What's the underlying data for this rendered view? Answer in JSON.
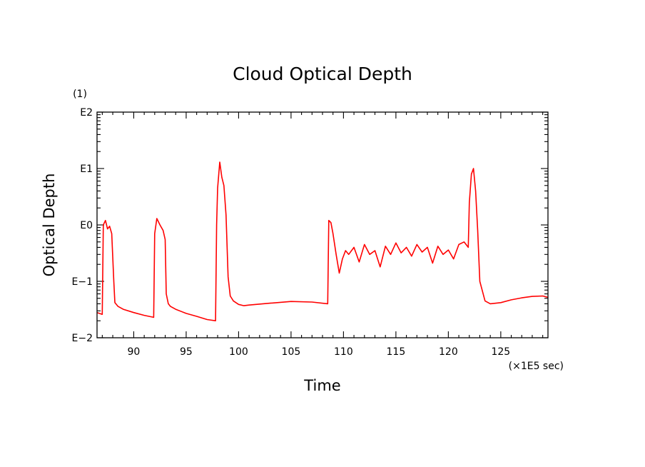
{
  "chart_data": {
    "type": "line",
    "title": "Cloud Optical Depth",
    "xlabel": "Time",
    "ylabel": "Optical Depth",
    "x_units_label": "(×1E5 sec)",
    "y_scale_label": "(1)",
    "y_scale": "log",
    "grid": false,
    "xlim": [
      86.5,
      129.5
    ],
    "ylim": [
      0.01,
      100
    ],
    "x_tick_labels": [
      "90",
      "95",
      "100",
      "105",
      "110",
      "115",
      "120",
      "125"
    ],
    "y_tick_labels": [
      "E−2",
      "E−1",
      "E0",
      "E1",
      "E2"
    ],
    "series": [
      {
        "color": "#ff0000",
        "x": [
          86.5,
          87.0,
          87.1,
          87.3,
          87.5,
          87.7,
          87.9,
          88.1,
          88.2,
          88.5,
          89.0,
          90.0,
          91.0,
          91.9,
          92.0,
          92.2,
          92.5,
          92.8,
          93.0,
          93.1,
          93.3,
          93.5,
          94.0,
          95.0,
          96.0,
          97.0,
          97.8,
          97.9,
          98.0,
          98.2,
          98.4,
          98.6,
          98.8,
          99.0,
          99.2,
          99.5,
          100.0,
          100.5,
          101.0,
          103.0,
          105.0,
          107.0,
          108.5,
          108.6,
          108.8,
          109.0,
          109.3,
          109.6,
          109.9,
          110.2,
          110.5,
          111.0,
          111.5,
          112.0,
          112.5,
          113.0,
          113.5,
          114.0,
          114.5,
          115.0,
          115.5,
          116.0,
          116.5,
          117.0,
          117.5,
          118.0,
          118.5,
          119.0,
          119.5,
          120.0,
          120.5,
          121.0,
          121.5,
          121.9,
          122.0,
          122.2,
          122.4,
          122.6,
          122.8,
          123.0,
          123.5,
          124.0,
          125.0,
          126.0,
          127.0,
          128.0,
          129.0,
          129.5
        ],
        "y": [
          0.028,
          0.026,
          1.0,
          1.2,
          0.85,
          0.95,
          0.7,
          0.1,
          0.042,
          0.036,
          0.032,
          0.028,
          0.025,
          0.023,
          0.7,
          1.3,
          1.0,
          0.8,
          0.55,
          0.06,
          0.04,
          0.036,
          0.032,
          0.027,
          0.024,
          0.021,
          0.02,
          1.0,
          4.5,
          13.0,
          7.0,
          5.0,
          1.5,
          0.12,
          0.055,
          0.045,
          0.039,
          0.037,
          0.038,
          0.041,
          0.044,
          0.043,
          0.04,
          1.2,
          1.1,
          0.7,
          0.3,
          0.14,
          0.25,
          0.35,
          0.3,
          0.4,
          0.22,
          0.45,
          0.3,
          0.35,
          0.18,
          0.42,
          0.3,
          0.48,
          0.32,
          0.4,
          0.28,
          0.45,
          0.33,
          0.4,
          0.21,
          0.42,
          0.3,
          0.36,
          0.25,
          0.45,
          0.5,
          0.4,
          2.5,
          8.0,
          10.0,
          4.0,
          0.8,
          0.1,
          0.045,
          0.04,
          0.042,
          0.047,
          0.051,
          0.054,
          0.055,
          0.052
        ]
      }
    ]
  }
}
